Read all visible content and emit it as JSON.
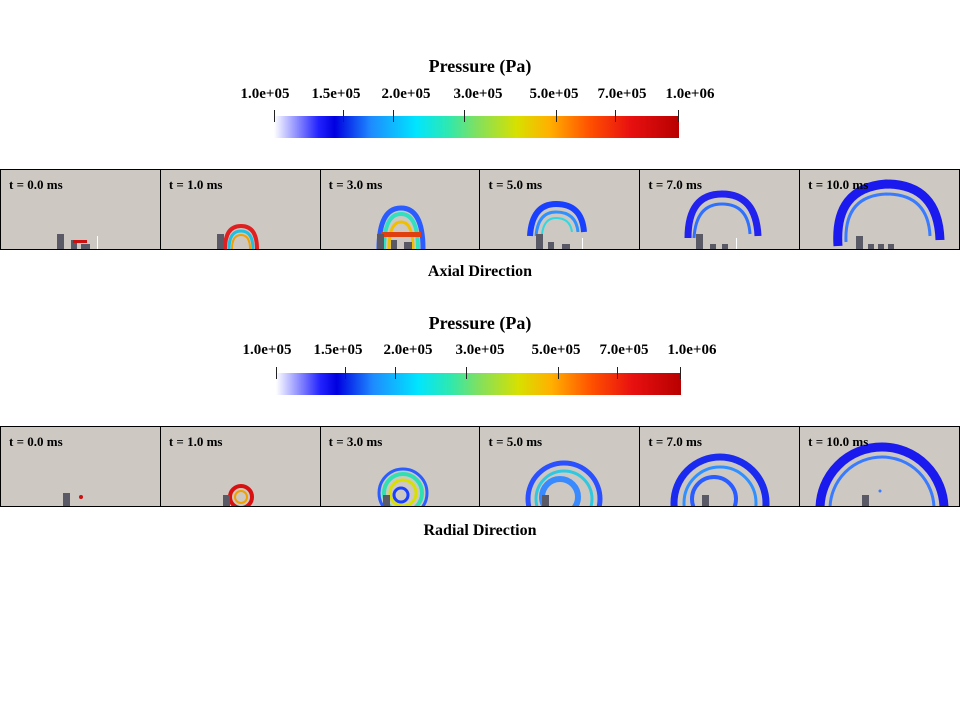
{
  "figures": [
    {
      "colorbar_title": "Pressure (Pa)",
      "colorbar_ticks": [
        "1.0e+05",
        "1.5e+05",
        "2.0e+05",
        "3.0e+05",
        "5.0e+05",
        "7.0e+05",
        "1.0e+06"
      ],
      "panels": [
        "t = 0.0 ms",
        "t = 1.0 ms",
        "t = 3.0 ms",
        "t = 5.0 ms",
        "t = 7.0 ms",
        "t = 10.0 ms"
      ],
      "caption": "Axial Direction"
    },
    {
      "colorbar_title": "Pressure (Pa)",
      "colorbar_ticks": [
        "1.0e+05",
        "1.5e+05",
        "2.0e+05",
        "3.0e+05",
        "5.0e+05",
        "7.0e+05",
        "1.0e+06"
      ],
      "panels": [
        "t = 0.0 ms",
        "t = 1.0 ms",
        "t = 3.0 ms",
        "t = 5.0 ms",
        "t = 7.0 ms",
        "t = 10.0 ms"
      ],
      "caption": "Radial Direction"
    }
  ],
  "colors": {
    "panel_background": "#cdc9c2",
    "obstacle": "#5a5a66",
    "low_pressure": "#2222ee",
    "mid_pressure": "#22d0e0",
    "high_pressure": "#d01010"
  }
}
